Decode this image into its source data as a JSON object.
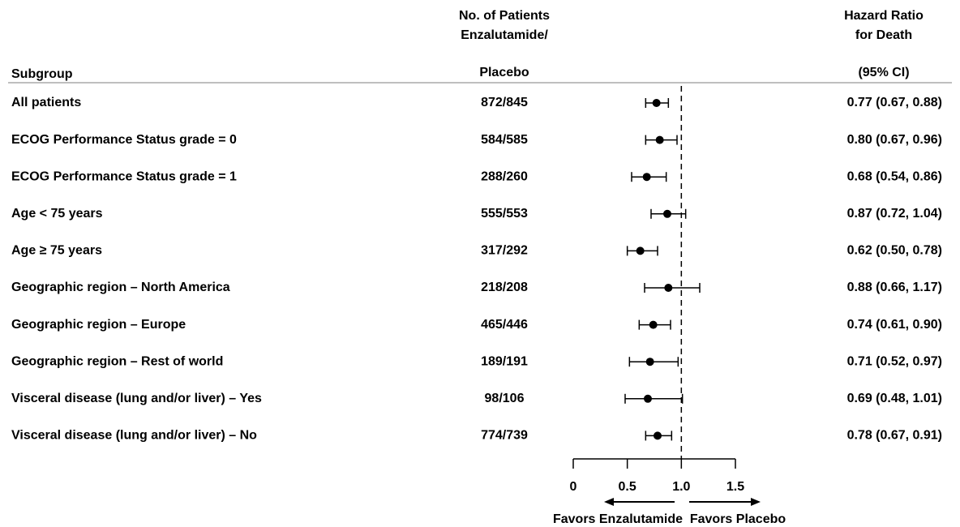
{
  "chart_data": {
    "type": "forest",
    "subgroup_header": "Subgroup",
    "patients_header": [
      "No. of Patients",
      "Enzalutamide/",
      "Placebo"
    ],
    "ratio_header": [
      "Hazard Ratio",
      "for Death",
      "(95% CI)"
    ],
    "categories": [
      "All patients",
      "ECOG Performance Status grade = 0",
      "ECOG Performance Status grade = 1",
      "Age < 75 years",
      "Age ≥ 75 years",
      "Geographic region – North America",
      "Geographic region – Europe",
      "Geographic region – Rest of world",
      "Visceral disease (lung and/or liver) – Yes",
      "Visceral disease (lung and/or liver) – No"
    ],
    "patients": [
      "872/845",
      "584/585",
      "288/260",
      "555/553",
      "317/292",
      "218/208",
      "465/446",
      "189/191",
      "98/106",
      "774/739"
    ],
    "values": [
      0.77,
      0.8,
      0.68,
      0.87,
      0.62,
      0.88,
      0.74,
      0.71,
      0.69,
      0.78
    ],
    "lower": [
      0.67,
      0.67,
      0.54,
      0.72,
      0.5,
      0.66,
      0.61,
      0.52,
      0.48,
      0.67
    ],
    "upper": [
      0.88,
      0.96,
      0.86,
      1.04,
      0.78,
      1.17,
      0.9,
      0.97,
      1.01,
      0.91
    ],
    "value_labels": [
      "0.77 (0.67, 0.88)",
      "0.80 (0.67, 0.96)",
      "0.68 (0.54, 0.86)",
      "0.87 (0.72, 1.04)",
      "0.62 (0.50, 0.78)",
      "0.88 (0.66, 1.17)",
      "0.74 (0.61, 0.90)",
      "0.71 (0.52, 0.97)",
      "0.69 (0.48, 1.01)",
      "0.78 (0.67, 0.91)"
    ],
    "color": "#000000",
    "xlim": [
      0,
      1.5
    ],
    "xticks": [
      0,
      0.5,
      {
        "value": 1,
        "label": "1.0"
      },
      1.5
    ],
    "reference_line": 1,
    "favors_left": "Favors Enzalutamide",
    "favors_right": "Favors Placebo"
  }
}
